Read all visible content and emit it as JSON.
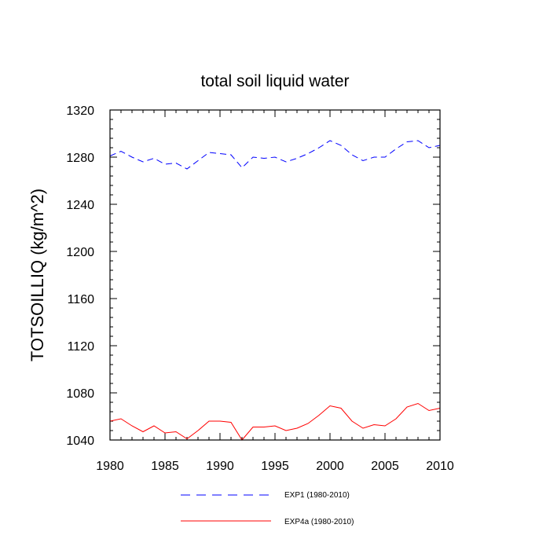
{
  "chart_data": {
    "type": "line",
    "title": "total soil liquid water",
    "xlabel": "",
    "ylabel": "TOTSOILLIQ  (kg/m^2)",
    "xlim": [
      1980,
      2010
    ],
    "ylim": [
      1040,
      1320
    ],
    "xticks": [
      1980,
      1985,
      1990,
      1995,
      2000,
      2005,
      2010
    ],
    "yticks": [
      1040,
      1080,
      1120,
      1160,
      1200,
      1240,
      1280,
      1320
    ],
    "x": [
      1980,
      1981,
      1982,
      1983,
      1984,
      1985,
      1986,
      1987,
      1988,
      1989,
      1990,
      1991,
      1992,
      1993,
      1994,
      1995,
      1996,
      1997,
      1998,
      1999,
      2000,
      2001,
      2002,
      2003,
      2004,
      2005,
      2006,
      2007,
      2008,
      2009,
      2010
    ],
    "series": [
      {
        "name": "EXP1 (1980-2010)",
        "color": "#0000ff",
        "style": "dashed",
        "values": [
          1281,
          1285,
          1280,
          1276,
          1279,
          1274,
          1275,
          1270,
          1277,
          1284,
          1283,
          1282,
          1271,
          1280,
          1279,
          1280,
          1276,
          1279,
          1283,
          1288,
          1294,
          1290,
          1282,
          1277,
          1280,
          1280,
          1287,
          1293,
          1294,
          1288,
          1290
        ]
      },
      {
        "name": "EXP4a (1980-2010)",
        "color": "#ff0000",
        "style": "solid",
        "values": [
          1056,
          1058,
          1052,
          1047,
          1052,
          1046,
          1047,
          1041,
          1048,
          1056,
          1056,
          1055,
          1040,
          1051,
          1051,
          1052,
          1048,
          1050,
          1054,
          1061,
          1069,
          1067,
          1056,
          1050,
          1053,
          1052,
          1058,
          1068,
          1071,
          1065,
          1067
        ]
      }
    ],
    "legend_position": "bottom-center"
  }
}
